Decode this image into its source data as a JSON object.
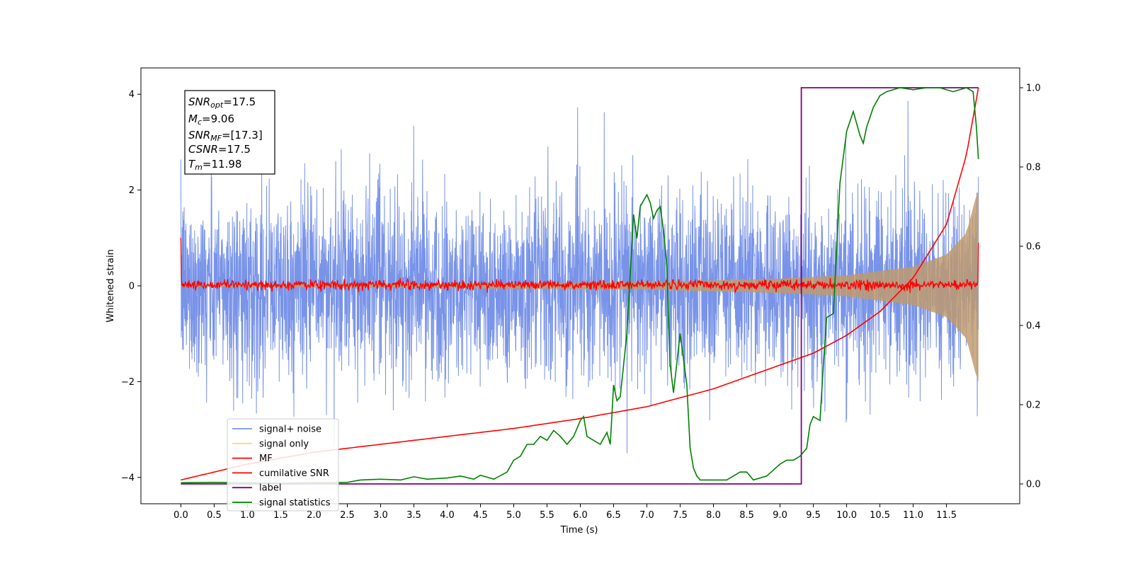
{
  "chart_data": {
    "type": "line",
    "xlabel": "Time (s)",
    "ylabel": "Whitened strain",
    "xlim": [
      -0.6,
      12.6
    ],
    "ylim": [
      -4.55,
      4.55
    ],
    "y2lim": [
      -0.05,
      1.05
    ],
    "x_ticks": [
      "0.0",
      "0.5",
      "1.0",
      "1.5",
      "2.0",
      "2.5",
      "3.0",
      "3.5",
      "4.0",
      "4.5",
      "5.0",
      "5.5",
      "6.0",
      "6.5",
      "7.0",
      "7.5",
      "8.0",
      "8.5",
      "9.0",
      "9.5",
      "10.0",
      "10.5",
      "11.0",
      "11.5"
    ],
    "y_ticks": [
      "−4",
      "−2",
      "0",
      "2",
      "4"
    ],
    "y2_ticks": [
      "0.0",
      "0.2",
      "0.4",
      "0.6",
      "0.8",
      "1.0"
    ],
    "legend_position": "lower left",
    "info_box": {
      "snr_opt": {
        "main": "SNR",
        "sub": "opt",
        "value": "=17.5"
      },
      "mc": {
        "main": "M",
        "sub": "c",
        "value": "=9.06"
      },
      "snr_mf": {
        "main": "SNR",
        "sub": "MF",
        "value": "=[17.3]"
      },
      "csnr": {
        "main": "CSNR",
        "sub": "",
        "value": "=17.5"
      },
      "tm": {
        "main": "T",
        "sub": "m",
        "value": "=11.98"
      }
    },
    "series": [
      {
        "name": "signal+ noise",
        "color": "#7893e8",
        "axis": "left",
        "kind": "noise",
        "t_range": [
          0.0,
          11.98
        ],
        "sigma": 0.95,
        "peak_max": 4.1,
        "peak_min": -4.15
      },
      {
        "name": "signal only",
        "color": "#fdd58a",
        "axis": "left",
        "kind": "chirp_envelope",
        "t_range": [
          0.0,
          11.98
        ],
        "envelope_t": [
          0.0,
          4.0,
          7.0,
          9.0,
          10.0,
          11.0,
          11.5,
          11.8,
          11.95,
          11.98
        ],
        "envelope_amp": [
          0.02,
          0.05,
          0.08,
          0.15,
          0.22,
          0.4,
          0.65,
          1.1,
          1.9,
          2.0
        ]
      },
      {
        "name": "MF",
        "color": "#ff0000",
        "axis": "left",
        "kind": "mf",
        "t_range": [
          0.0,
          11.98
        ],
        "level": 0.02,
        "jitter": 0.05,
        "start_spike": 1.0,
        "end_spike": 0.9
      },
      {
        "name": "cumilative SNR",
        "color": "#ff0000",
        "axis": "right",
        "t": [
          0.0,
          1.0,
          2.0,
          3.0,
          4.0,
          5.0,
          6.0,
          7.0,
          8.0,
          9.0,
          9.5,
          10.0,
          10.5,
          11.0,
          11.5,
          11.8,
          11.98
        ],
        "y": [
          0.01,
          0.05,
          0.08,
          0.1,
          0.12,
          0.14,
          0.165,
          0.195,
          0.24,
          0.3,
          0.33,
          0.375,
          0.435,
          0.52,
          0.655,
          0.83,
          1.0
        ]
      },
      {
        "name": "label",
        "color": "#800080",
        "axis": "right",
        "t": [
          0.0,
          9.32,
          9.32,
          11.98
        ],
        "y": [
          0.0,
          0.0,
          1.0,
          1.0
        ]
      },
      {
        "name": "signal statistics",
        "color": "#008000",
        "axis": "right",
        "t": [
          0.0,
          0.5,
          1.0,
          1.5,
          2.0,
          2.5,
          2.7,
          3.0,
          3.3,
          3.5,
          3.7,
          4.0,
          4.2,
          4.4,
          4.5,
          4.7,
          4.9,
          5.0,
          5.1,
          5.2,
          5.3,
          5.4,
          5.5,
          5.6,
          5.7,
          5.8,
          5.9,
          6.0,
          6.05,
          6.1,
          6.2,
          6.3,
          6.4,
          6.45,
          6.5,
          6.55,
          6.6,
          6.7,
          6.8,
          6.85,
          6.9,
          7.0,
          7.05,
          7.1,
          7.15,
          7.2,
          7.25,
          7.3,
          7.35,
          7.4,
          7.5,
          7.6,
          7.65,
          7.7,
          7.75,
          7.8,
          8.0,
          8.2,
          8.4,
          8.5,
          8.6,
          8.8,
          9.0,
          9.1,
          9.2,
          9.3,
          9.4,
          9.45,
          9.5,
          9.6,
          9.65,
          9.7,
          9.8,
          9.9,
          10.0,
          10.1,
          10.2,
          10.25,
          10.3,
          10.4,
          10.5,
          10.6,
          10.8,
          11.0,
          11.2,
          11.4,
          11.6,
          11.8,
          11.9,
          11.95,
          11.98
        ],
        "y": [
          0.003,
          0.004,
          0.003,
          0.002,
          0.003,
          0.004,
          0.01,
          0.012,
          0.01,
          0.018,
          0.012,
          0.015,
          0.02,
          0.012,
          0.022,
          0.012,
          0.03,
          0.06,
          0.07,
          0.1,
          0.1,
          0.12,
          0.11,
          0.135,
          0.12,
          0.1,
          0.12,
          0.16,
          0.17,
          0.12,
          0.11,
          0.1,
          0.13,
          0.1,
          0.25,
          0.21,
          0.22,
          0.38,
          0.68,
          0.62,
          0.7,
          0.73,
          0.71,
          0.67,
          0.69,
          0.7,
          0.64,
          0.55,
          0.3,
          0.23,
          0.38,
          0.25,
          0.09,
          0.04,
          0.02,
          0.01,
          0.01,
          0.01,
          0.03,
          0.03,
          0.01,
          0.02,
          0.05,
          0.06,
          0.06,
          0.07,
          0.09,
          0.15,
          0.17,
          0.16,
          0.3,
          0.42,
          0.43,
          0.76,
          0.89,
          0.94,
          0.88,
          0.86,
          0.9,
          0.95,
          0.98,
          0.99,
          1.0,
          0.995,
          1.0,
          1.0,
          0.99,
          1.0,
          0.99,
          0.9,
          0.82
        ]
      }
    ]
  }
}
